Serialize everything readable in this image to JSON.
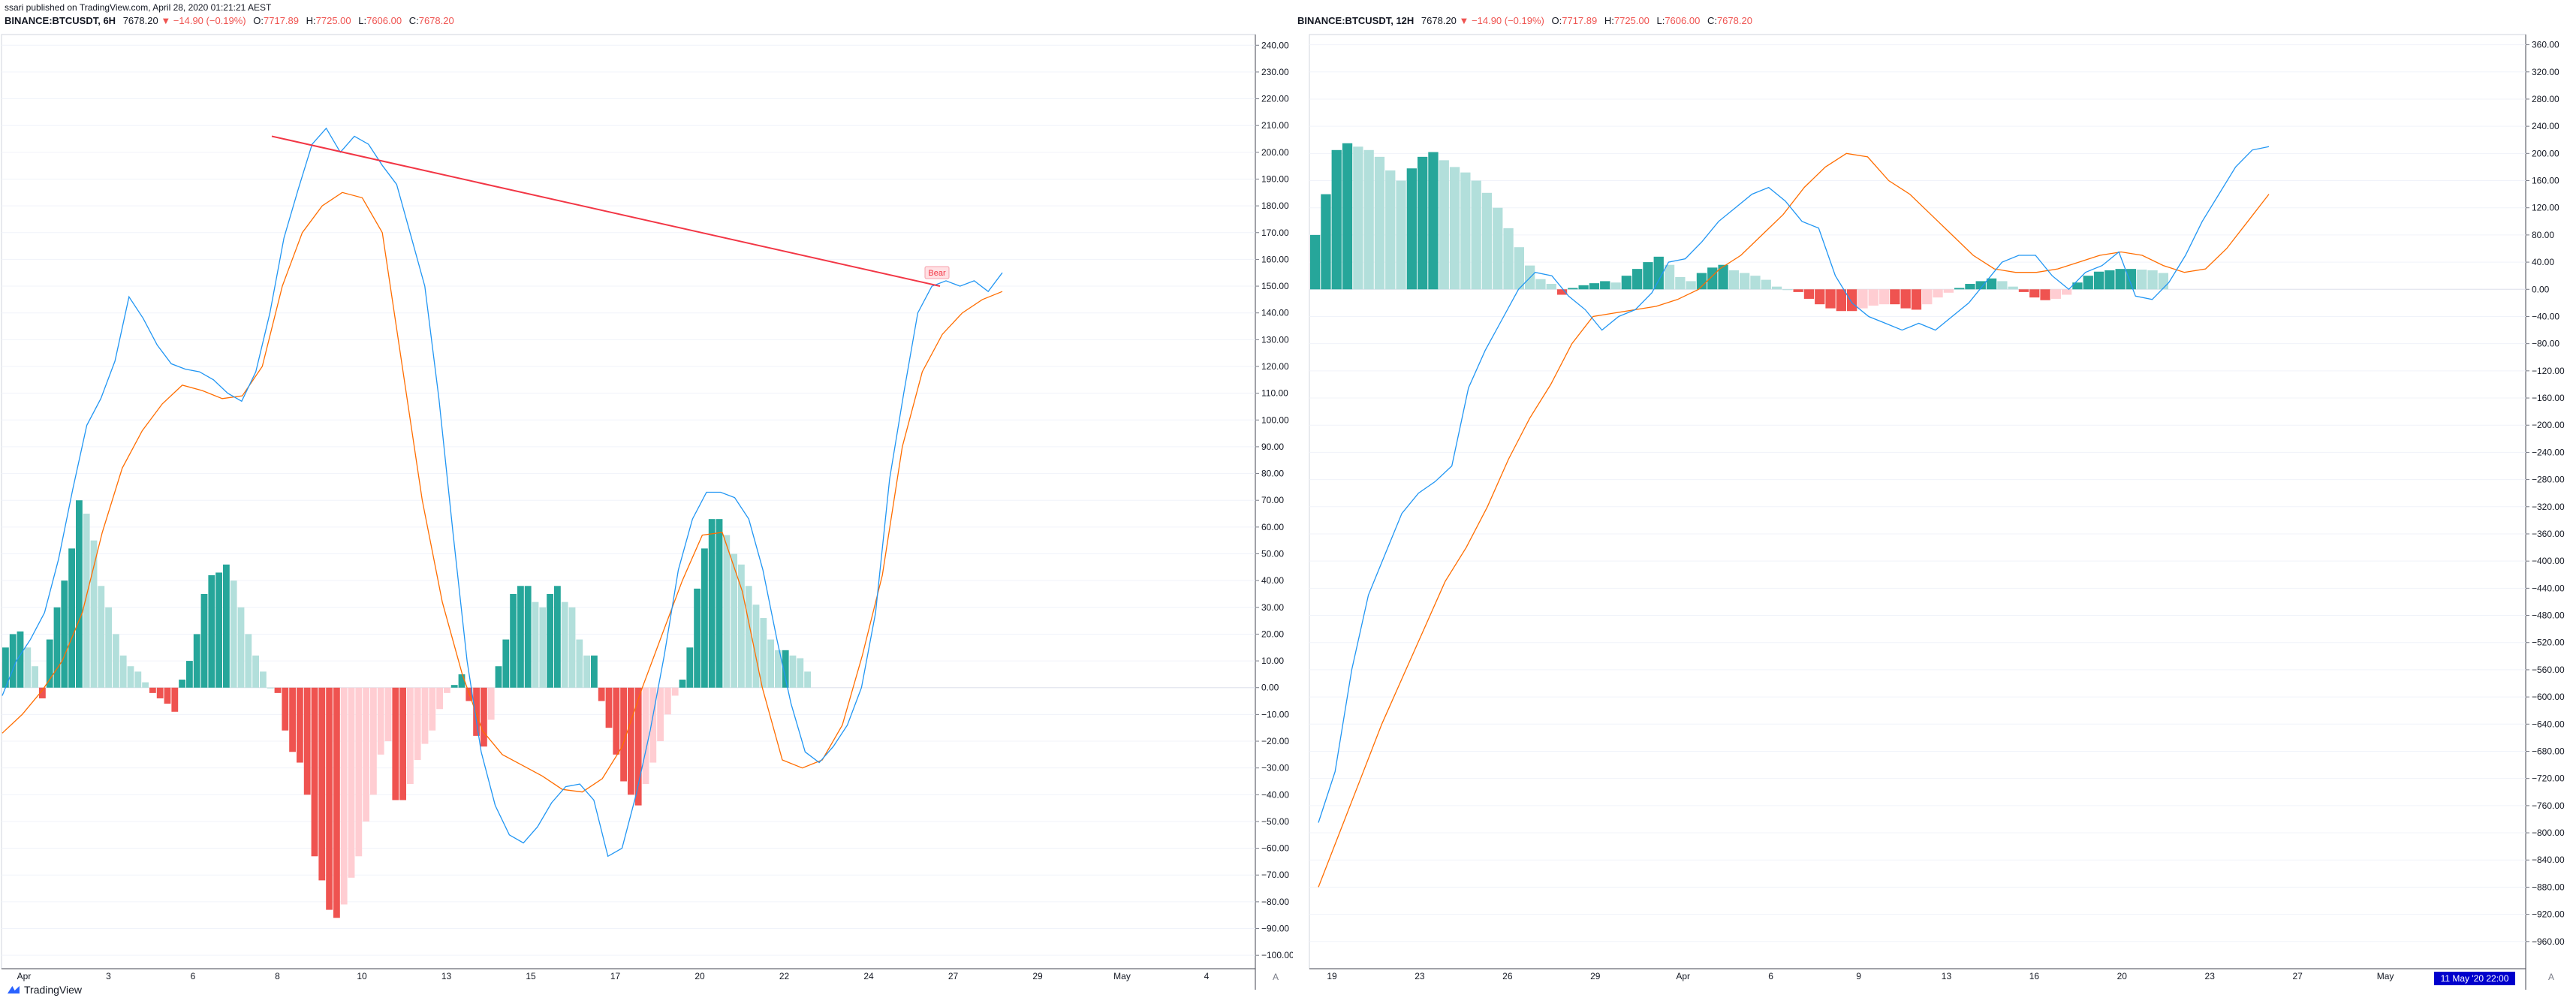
{
  "published": "ssari published on TradingView.com, April 28, 2020 01:21:21 AEST",
  "footer_brand": "TradingView",
  "colors": {
    "macd_line": "#2196f3",
    "signal_line": "#ff6d00",
    "hist_up_strong": "#26a69a",
    "hist_up_weak": "#b2dfdb",
    "hist_down_strong": "#ef5350",
    "hist_down_weak": "#ffcdd2",
    "trendline": "#f23645"
  },
  "panes": [
    {
      "legend": {
        "symbol": "BINANCE:BTCUSDT, 6H",
        "last": "7678.20",
        "change": "▼ −14.90 (−0.19%)",
        "o_label": "O:",
        "o": "7717.89",
        "h_label": "H:",
        "h": "7725.00",
        "l_label": "L:",
        "l": "7606.00",
        "c_label": "C:",
        "c": "7678.20"
      },
      "x_ticks": [
        "Apr",
        "3",
        "6",
        "8",
        "10",
        "13",
        "15",
        "17",
        "20",
        "22",
        "24",
        "27",
        "29",
        "May",
        "4"
      ],
      "trendline_label": "Bear"
    },
    {
      "legend": {
        "symbol": "BINANCE:BTCUSDT, 12H",
        "last": "7678.20",
        "change": "▼ −14.90 (−0.19%)",
        "o_label": "O:",
        "o": "7717.89",
        "h_label": "H:",
        "h": "7725.00",
        "l_label": "L:",
        "l": "7606.00",
        "c_label": "C:",
        "c": "7678.20"
      },
      "x_ticks": [
        "19",
        "23",
        "26",
        "29",
        "Apr",
        "6",
        "9",
        "13",
        "16",
        "20",
        "23",
        "27",
        "May",
        "4"
      ],
      "crosshair_label": "11 May '20   22:00"
    }
  ],
  "chart_data": [
    {
      "type": "line",
      "title": "BINANCE:BTCUSDT, 6H",
      "indicator": "MACD",
      "ylim": [
        -105,
        244
      ],
      "y_ticks": [
        240,
        230,
        220,
        210,
        200,
        190,
        180,
        170,
        160,
        150,
        140,
        130,
        120,
        110,
        100,
        90,
        80,
        70,
        60,
        50,
        40,
        30,
        20,
        10,
        0,
        -10,
        -20,
        -30,
        -40,
        -50,
        -60,
        -70,
        -80,
        -90,
        -100
      ],
      "y_tick_labels": [
        "240.00",
        "230.00",
        "220.00",
        "210.00",
        "200.00",
        "190.00",
        "180.00",
        "170.00",
        "160.00",
        "150.00",
        "140.00",
        "130.00",
        "120.00",
        "110.00",
        "100.00",
        "90.00",
        "80.00",
        "70.00",
        "60.00",
        "50.00",
        "40.00",
        "30.00",
        "20.00",
        "10.00",
        "0.00",
        "−10.00",
        "−20.00",
        "−30.00",
        "−40.00",
        "−50.00",
        "−60.00",
        "−70.00",
        "−80.00",
        "−90.00",
        "−100.00"
      ],
      "histogram": [
        15,
        20,
        21,
        15,
        8,
        -4,
        18,
        30,
        40,
        52,
        70,
        65,
        55,
        38,
        30,
        20,
        12,
        8,
        6,
        2,
        -2,
        -4,
        -6,
        -9,
        3,
        10,
        20,
        35,
        42,
        43,
        46,
        40,
        30,
        20,
        12,
        6,
        0,
        -2,
        -16,
        -24,
        -28,
        -40,
        -63,
        -72,
        -83,
        -86,
        -81,
        -71,
        -63,
        -50,
        -40,
        -25,
        -20,
        -42,
        -42,
        -36,
        -27,
        -21,
        -16,
        -8,
        -2,
        1,
        5,
        -5,
        -18,
        -22,
        -12,
        8,
        18,
        35,
        38,
        38,
        32,
        30,
        35,
        38,
        32,
        30,
        18,
        12,
        12,
        -5,
        -15,
        -25,
        -35,
        -40,
        -44,
        -36,
        -28,
        -20,
        -10,
        -3,
        3,
        15,
        37,
        52,
        63,
        63,
        57,
        50,
        46,
        38,
        31,
        26,
        18,
        14,
        14,
        12,
        11,
        6
      ],
      "macd_line": [
        -3,
        10,
        18,
        28,
        48,
        74,
        98,
        108,
        122,
        146,
        138,
        128,
        121,
        119,
        118,
        115,
        110,
        107,
        118,
        140,
        168,
        186,
        203,
        209,
        200,
        206,
        203,
        195,
        188,
        169,
        150,
        108,
        58,
        10,
        -24,
        -44,
        -55,
        -58,
        -52,
        -43,
        -37,
        -36,
        -42,
        -63,
        -60,
        -40,
        -16,
        12,
        44,
        63,
        73,
        73,
        71,
        63,
        44,
        18,
        -6,
        -24,
        -28,
        -22,
        -14,
        0,
        28,
        78,
        110,
        140,
        150,
        152,
        150,
        152,
        148,
        155
      ],
      "signal_line": [
        -17,
        -10,
        -1,
        10,
        28,
        58,
        82,
        96,
        106,
        113,
        111,
        108,
        109,
        120,
        150,
        170,
        180,
        185,
        183,
        170,
        120,
        70,
        32,
        5,
        -16,
        -25,
        -29,
        -33,
        -38,
        -39,
        -34,
        -22,
        0,
        20,
        40,
        57,
        58,
        36,
        0,
        -27,
        -30,
        -27,
        -14,
        12,
        42,
        90,
        118,
        132,
        140,
        145,
        148
      ],
      "trendline": {
        "from": [
          8,
          206
        ],
        "to": [
          26.5,
          150
        ],
        "label": "Bear"
      }
    },
    {
      "type": "line",
      "title": "BINANCE:BTCUSDT, 12H",
      "indicator": "MACD",
      "ylim": [
        -1000,
        375
      ],
      "y_ticks": [
        360,
        320,
        280,
        240,
        200,
        160,
        120,
        80,
        40,
        0,
        -40,
        -80,
        -120,
        -160,
        -200,
        -240,
        -280,
        -320,
        -360,
        -400,
        -440,
        -480,
        -520,
        -560,
        -600,
        -640,
        -680,
        -720,
        -760,
        -800,
        -840,
        -880,
        -920,
        -960
      ],
      "y_tick_labels": [
        "360.00",
        "320.00",
        "280.00",
        "240.00",
        "200.00",
        "160.00",
        "120.00",
        "80.00",
        "40.00",
        "0.00",
        "−40.00",
        "−80.00",
        "−120.00",
        "−160.00",
        "−200.00",
        "−240.00",
        "−280.00",
        "−320.00",
        "−360.00",
        "−400.00",
        "−440.00",
        "−480.00",
        "−520.00",
        "−560.00",
        "−600.00",
        "−640.00",
        "−680.00",
        "−720.00",
        "−760.00",
        "−800.00",
        "−840.00",
        "−880.00",
        "−920.00",
        "−960.00"
      ],
      "histogram": [
        80,
        140,
        205,
        215,
        210,
        205,
        195,
        175,
        160,
        178,
        195,
        202,
        190,
        180,
        172,
        160,
        142,
        120,
        90,
        62,
        35,
        15,
        8,
        -8,
        2,
        6,
        9,
        12,
        10,
        20,
        30,
        40,
        48,
        36,
        18,
        12,
        24,
        32,
        36,
        28,
        24,
        20,
        14,
        4,
        0,
        -4,
        -14,
        -22,
        -28,
        -32,
        -32,
        -28,
        -24,
        -22,
        -22,
        -28,
        -30,
        -22,
        -12,
        -5,
        2,
        8,
        12,
        16,
        12,
        4,
        -4,
        -12,
        -16,
        -14,
        -8,
        10,
        20,
        26,
        28,
        30,
        30,
        29,
        28,
        24
      ],
      "macd_line": [
        -785,
        -710,
        -560,
        -450,
        -390,
        -330,
        -300,
        -283,
        -260,
        -145,
        -90,
        -45,
        0,
        25,
        20,
        -10,
        -30,
        -60,
        -40,
        -30,
        -5,
        40,
        45,
        70,
        100,
        120,
        140,
        150,
        130,
        100,
        90,
        20,
        -20,
        -40,
        -50,
        -60,
        -50,
        -60,
        -40,
        -20,
        10,
        40,
        50,
        50,
        20,
        0,
        25,
        35,
        55,
        -10,
        -15,
        10,
        50,
        100,
        140,
        180,
        205,
        210
      ],
      "signal_line": [
        -880,
        -800,
        -720,
        -640,
        -570,
        -500,
        -430,
        -380,
        -320,
        -250,
        -190,
        -140,
        -80,
        -40,
        -35,
        -30,
        -25,
        -15,
        0,
        30,
        50,
        80,
        110,
        150,
        180,
        200,
        195,
        160,
        140,
        110,
        80,
        50,
        30,
        25,
        25,
        30,
        40,
        50,
        55,
        50,
        35,
        25,
        30,
        60,
        100,
        140
      ]
    }
  ]
}
